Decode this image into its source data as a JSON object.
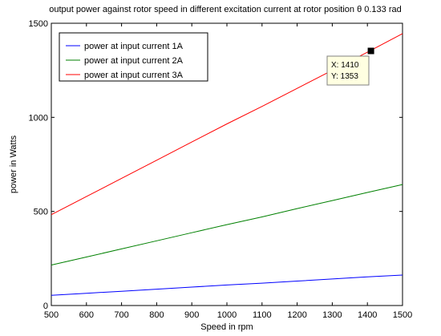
{
  "chart_data": {
    "type": "line",
    "title": "output power against rotor speed in different excitation current at rotor position θ 0.133 rad",
    "xlabel": "Speed in rpm",
    "ylabel": "power in Watts",
    "xlim": [
      500,
      1500
    ],
    "ylim": [
      0,
      1500
    ],
    "xticks": [
      500,
      600,
      700,
      800,
      900,
      1000,
      1100,
      1200,
      1300,
      1400,
      1500
    ],
    "yticks": [
      0,
      500,
      1000,
      1500
    ],
    "grid": false,
    "legend_position": "top-left",
    "x": [
      500,
      600,
      700,
      800,
      900,
      1000,
      1100,
      1200,
      1300,
      1400,
      1500
    ],
    "series": [
      {
        "name": "power at input current 1A",
        "color": "#0000ff",
        "values": [
          54,
          65,
          76,
          87,
          98,
          109,
          119,
          130,
          141,
          152,
          162
        ]
      },
      {
        "name": "power at input current 2A",
        "color": "#008000",
        "values": [
          215,
          258,
          301,
          344,
          387,
          430,
          471,
          515,
          558,
          601,
          643
        ]
      },
      {
        "name": "power at input current 3A",
        "color": "#ff0000",
        "values": [
          483,
          579,
          676,
          772,
          869,
          965,
          1058,
          1154,
          1250,
          1346,
          1445
        ]
      }
    ],
    "datatip": {
      "x_label": "X: 1410",
      "y_label": "Y: 1353",
      "x": 1410,
      "y": 1353
    }
  }
}
